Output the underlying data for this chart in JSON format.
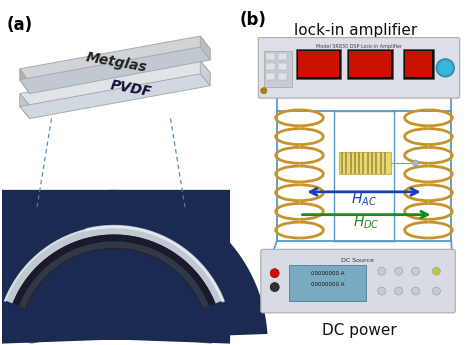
{
  "label_a": "(a)",
  "label_b": "(b)",
  "label_lockin": "lock-in amplifier",
  "label_dc": "DC power",
  "label_hac": "$H_{AC}$",
  "label_hdc": "$H_{DC}$",
  "label_metglas": "Metglas",
  "label_pvdf": "PVDF",
  "bg_color": "#ffffff",
  "coil_color": "#c8922a",
  "sample_color": "#e8d870",
  "arrow_hac_color": "#1a3fb5",
  "arrow_hdc_color": "#1a8b1a",
  "wire_color": "#5599cc",
  "photo_bg_blue": "#3060a0",
  "photo_bg_light": "#6090c8"
}
